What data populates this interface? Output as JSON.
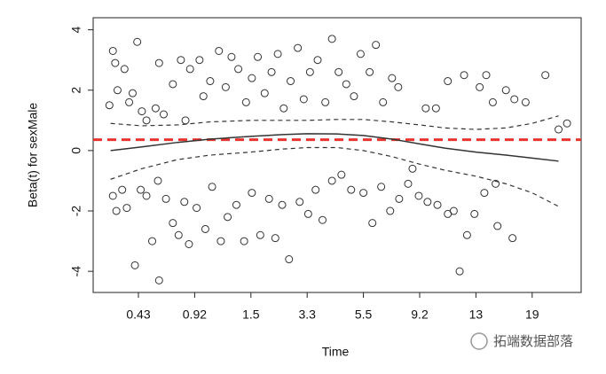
{
  "chart_data": {
    "type": "scatter",
    "xlabel": "Time",
    "ylabel": "Beta(t) for sexMale",
    "watermark": "拓端数据部落",
    "xlim": [
      0.04,
      24.2
    ],
    "xticks": [
      0.43,
      0.92,
      1.5,
      3.3,
      5.5,
      9.2,
      13,
      19
    ],
    "ylim": [
      -4.7,
      4.4
    ],
    "yticks": [
      -4,
      -2,
      0,
      2,
      4
    ],
    "point_color": "#333333",
    "x": [
      0.18,
      0.21,
      0.23,
      0.25,
      0.31,
      0.35,
      0.38,
      0.42,
      0.46,
      0.5,
      0.58,
      0.61,
      0.65,
      0.73,
      0.8,
      0.84,
      0.88,
      0.97,
      1.01,
      1.08,
      1.17,
      1.24,
      1.3,
      1.37,
      1.45,
      1.53,
      1.72,
      1.94,
      2.16,
      2.36,
      2.55,
      2.77,
      3.0,
      3.19,
      3.41,
      3.71,
      4.01,
      4.27,
      4.53,
      4.83,
      5.13,
      5.39,
      5.91,
      6.32,
      6.79,
      7.38,
      7.79,
      9.61,
      10.3,
      11.1,
      12.2,
      13.4,
      14.1,
      14.8,
      16.2,
      17.1,
      18.3,
      20.4,
      21.8,
      22.7,
      0.21,
      0.24,
      0.29,
      0.33,
      0.4,
      0.45,
      0.5,
      0.55,
      0.6,
      0.61,
      0.67,
      0.73,
      0.78,
      0.83,
      0.87,
      0.94,
      1.03,
      1.1,
      1.19,
      1.26,
      1.35,
      1.43,
      1.53,
      1.8,
      2.08,
      2.28,
      2.5,
      2.72,
      3.06,
      3.34,
      3.63,
      3.9,
      4.27,
      4.64,
      5.02,
      5.5,
      6.09,
      6.67,
      7.26,
      7.85,
      8.44,
      8.73,
      9.14,
      9.73,
      10.4,
      11.1,
      11.5,
      11.9,
      12.4,
      12.9,
      13.9,
      15.3,
      16.9,
      15.1
    ],
    "y": [
      1.5,
      3.3,
      2.9,
      2.0,
      2.7,
      1.6,
      1.9,
      3.6,
      1.3,
      1.0,
      1.4,
      2.9,
      1.2,
      2.2,
      3.0,
      1.0,
      2.7,
      3.0,
      1.8,
      2.3,
      3.3,
      2.1,
      3.1,
      2.7,
      1.6,
      2.4,
      3.1,
      1.9,
      2.6,
      3.2,
      1.4,
      2.3,
      3.4,
      1.7,
      2.6,
      3.0,
      1.6,
      3.7,
      2.6,
      2.2,
      1.8,
      3.2,
      2.6,
      3.5,
      1.6,
      2.4,
      2.1,
      1.4,
      1.4,
      2.3,
      2.5,
      2.1,
      2.5,
      1.6,
      2.0,
      1.7,
      1.6,
      2.5,
      0.7,
      0.9,
      -1.5,
      -2.0,
      -1.3,
      -1.9,
      -3.8,
      -1.3,
      -1.5,
      -3.0,
      -1.0,
      -4.3,
      -1.6,
      -2.4,
      -2.8,
      -1.7,
      -3.1,
      -1.9,
      -2.6,
      -1.2,
      -3.0,
      -2.2,
      -1.8,
      -3.0,
      -1.4,
      -2.8,
      -1.6,
      -2.9,
      -1.8,
      -3.6,
      -1.7,
      -2.1,
      -1.3,
      -2.3,
      -1.0,
      -0.8,
      -1.3,
      -1.4,
      -2.4,
      -1.2,
      -2.0,
      -1.6,
      -1.1,
      -0.6,
      -1.5,
      -1.7,
      -1.8,
      -2.1,
      -2.0,
      -4.0,
      -2.8,
      -2.1,
      -1.4,
      -2.5,
      -2.9,
      -1.1
    ],
    "lines": [
      {
        "color": "#333333",
        "dash": false,
        "x": [
          0.19,
          0.46,
          0.77,
          1.08,
          1.5,
          2.5,
          3.3,
          4.46,
          5.5,
          7.38,
          9.2,
          10.9,
          13,
          16.2,
          19,
          21.8
        ],
        "values": [
          0.0,
          0.12,
          0.27,
          0.38,
          0.47,
          0.53,
          0.56,
          0.55,
          0.5,
          0.38,
          0.22,
          0.08,
          -0.05,
          -0.15,
          -0.25,
          -0.35
        ]
      },
      {
        "color": "#333333",
        "dash": true,
        "x": [
          0.19,
          0.46,
          0.77,
          1.08,
          1.5,
          2.5,
          3.3,
          4.46,
          5.5,
          7.38,
          9.2,
          10.9,
          13,
          16.2,
          19,
          21.8
        ],
        "values": [
          0.9,
          0.82,
          0.85,
          0.95,
          1.0,
          1.0,
          1.0,
          1.03,
          1.03,
          0.95,
          0.85,
          0.75,
          0.7,
          0.75,
          0.9,
          1.15
        ]
      },
      {
        "color": "#333333",
        "dash": true,
        "x": [
          0.19,
          0.46,
          0.77,
          1.08,
          1.5,
          2.5,
          3.3,
          4.46,
          5.5,
          7.38,
          9.2,
          10.9,
          13,
          16.2,
          19,
          21.8
        ],
        "values": [
          -0.95,
          -0.6,
          -0.3,
          -0.15,
          -0.05,
          0.05,
          0.1,
          0.1,
          0.0,
          -0.2,
          -0.45,
          -0.65,
          -0.85,
          -1.1,
          -1.4,
          -1.85
        ]
      }
    ],
    "hline": {
      "value": 0.36,
      "color": "#e8352e"
    }
  }
}
